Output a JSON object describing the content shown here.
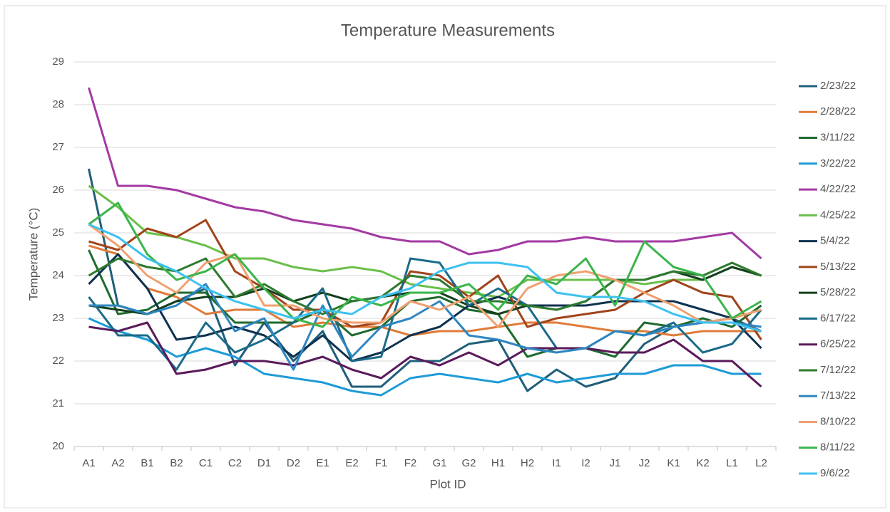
{
  "chart_data": {
    "type": "line",
    "title": "Temperature Measurements",
    "x_label": "Plot ID",
    "y_label": "Temperature (°C)",
    "categories": [
      "A1",
      "A2",
      "B1",
      "B2",
      "C1",
      "C2",
      "D1",
      "D2",
      "E1",
      "E2",
      "F1",
      "F2",
      "G1",
      "G2",
      "H1",
      "H2",
      "I1",
      "I2",
      "J1",
      "J2",
      "K1",
      "K2",
      "L1",
      "L2"
    ],
    "ylim": [
      20,
      29
    ],
    "yticks": [
      20,
      21,
      22,
      23,
      24,
      25,
      26,
      27,
      28,
      29
    ],
    "grid": true,
    "legend": "right",
    "series": [
      {
        "name": "2/23/22",
        "color": "#1f5f7a",
        "values": [
          26.5,
          23.3,
          23.1,
          23.4,
          23.7,
          21.9,
          22.9,
          22.0,
          22.7,
          21.4,
          21.4,
          22.0,
          22.0,
          22.4,
          22.5,
          21.3,
          21.8,
          21.4,
          21.6,
          22.4,
          22.8,
          22.9,
          23.0,
          22.7
        ]
      },
      {
        "name": "2/28/22",
        "color": "#e07b39",
        "values": [
          24.7,
          24.5,
          23.7,
          23.5,
          23.1,
          23.2,
          23.2,
          22.8,
          22.9,
          22.8,
          22.8,
          22.6,
          22.7,
          22.7,
          22.8,
          22.9,
          22.9,
          22.8,
          22.7,
          22.7,
          22.6,
          22.7,
          22.7,
          22.7
        ]
      },
      {
        "name": "3/11/22",
        "color": "#1e6b2e",
        "values": [
          24.6,
          23.1,
          23.2,
          23.6,
          23.6,
          22.9,
          22.9,
          22.9,
          23.2,
          22.6,
          22.8,
          23.4,
          23.5,
          23.2,
          23.1,
          22.1,
          22.3,
          22.3,
          22.1,
          22.9,
          22.8,
          23.0,
          22.8,
          23.3
        ]
      },
      {
        "name": "3/22/22",
        "color": "#1e9bd7",
        "values": [
          23.0,
          22.7,
          22.5,
          22.1,
          22.3,
          22.1,
          21.7,
          21.6,
          21.5,
          21.3,
          21.2,
          21.6,
          21.7,
          21.6,
          21.5,
          21.7,
          21.5,
          21.6,
          21.7,
          21.7,
          21.9,
          21.9,
          21.7,
          21.7
        ]
      },
      {
        "name": "4/22/22",
        "color": "#a33aa3",
        "values": [
          28.4,
          26.1,
          26.1,
          26.0,
          25.8,
          25.6,
          25.5,
          25.3,
          25.2,
          25.1,
          24.9,
          24.8,
          24.8,
          24.5,
          24.6,
          24.8,
          24.8,
          24.9,
          24.8,
          24.8,
          24.8,
          24.9,
          25.0,
          24.4
        ]
      },
      {
        "name": "4/25/22",
        "color": "#6abf4b",
        "values": [
          26.1,
          25.6,
          25.0,
          24.9,
          24.7,
          24.4,
          24.4,
          24.2,
          24.1,
          24.2,
          24.1,
          23.8,
          23.7,
          23.6,
          23.5,
          23.9,
          23.9,
          23.9,
          23.9,
          23.8,
          23.9,
          23.9,
          24.2,
          24.0
        ]
      },
      {
        "name": "5/4/22",
        "color": "#0e3250",
        "values": [
          23.8,
          24.5,
          23.7,
          22.5,
          22.6,
          22.8,
          22.6,
          22.1,
          22.6,
          22.0,
          22.2,
          22.6,
          22.8,
          23.3,
          23.5,
          23.3,
          23.3,
          23.3,
          23.4,
          23.4,
          23.4,
          23.2,
          23.0,
          22.3
        ]
      },
      {
        "name": "5/13/22",
        "color": "#a0441a",
        "values": [
          24.8,
          24.6,
          25.1,
          24.9,
          25.3,
          24.1,
          23.7,
          23.2,
          23.2,
          22.8,
          22.9,
          24.1,
          24.0,
          23.5,
          24.0,
          22.8,
          23.0,
          23.1,
          23.2,
          23.6,
          23.9,
          23.6,
          23.5,
          22.5
        ]
      },
      {
        "name": "5/28/22",
        "color": "#14401e",
        "values": [
          23.3,
          23.2,
          23.1,
          23.4,
          23.5,
          23.5,
          23.7,
          23.4,
          23.6,
          23.4,
          23.5,
          23.6,
          23.6,
          23.3,
          23.1,
          23.3,
          23.2,
          23.4,
          23.9,
          23.9,
          24.1,
          23.9,
          24.2,
          24.0
        ]
      },
      {
        "name": "6/17/22",
        "color": "#1a6b8a",
        "values": [
          23.5,
          22.6,
          22.6,
          21.8,
          22.9,
          22.2,
          22.5,
          22.9,
          23.7,
          22.0,
          22.1,
          24.4,
          24.3,
          23.3,
          23.7,
          23.3,
          22.3,
          22.3,
          22.7,
          22.6,
          22.9,
          22.2,
          22.4,
          23.2
        ]
      },
      {
        "name": "6/25/22",
        "color": "#5a1a5a",
        "values": [
          22.8,
          22.7,
          22.9,
          21.7,
          21.8,
          22.0,
          22.0,
          21.9,
          22.1,
          21.8,
          21.6,
          22.1,
          21.9,
          22.2,
          21.9,
          22.3,
          22.3,
          22.3,
          22.2,
          22.2,
          22.5,
          22.0,
          22.0,
          21.4
        ]
      },
      {
        "name": "7/12/22",
        "color": "#2e7a2e",
        "values": [
          24.0,
          24.4,
          24.2,
          24.1,
          24.4,
          23.5,
          23.8,
          23.4,
          23.1,
          23.4,
          23.5,
          24.0,
          23.9,
          23.4,
          23.4,
          23.3,
          23.2,
          23.4,
          23.9,
          23.9,
          24.1,
          24.0,
          24.3,
          24.0
        ]
      },
      {
        "name": "7/13/22",
        "color": "#2e86c1",
        "values": [
          23.3,
          23.3,
          23.1,
          23.3,
          23.8,
          22.7,
          23.0,
          21.8,
          23.3,
          22.1,
          22.8,
          23.0,
          23.4,
          22.6,
          22.5,
          22.3,
          22.2,
          22.3,
          22.7,
          22.6,
          22.8,
          22.9,
          22.9,
          22.8
        ]
      },
      {
        "name": "8/10/22",
        "color": "#f0a070",
        "values": [
          25.2,
          24.7,
          24.0,
          23.6,
          24.3,
          24.5,
          23.3,
          23.3,
          23.0,
          22.9,
          22.9,
          23.4,
          23.2,
          23.5,
          22.8,
          23.7,
          24.0,
          24.1,
          23.9,
          23.6,
          23.3,
          22.9,
          23.0,
          23.2
        ]
      },
      {
        "name": "8/11/22",
        "color": "#3ab54a",
        "values": [
          25.2,
          25.7,
          24.5,
          23.9,
          24.1,
          24.5,
          23.7,
          23.0,
          22.8,
          23.5,
          23.3,
          23.6,
          23.6,
          23.8,
          23.2,
          24.0,
          23.8,
          24.4,
          23.3,
          24.8,
          24.2,
          24.0,
          23.0,
          23.4
        ]
      },
      {
        "name": "9/6/22",
        "color": "#3ec1f0",
        "values": [
          25.2,
          24.9,
          24.4,
          24.1,
          23.7,
          23.4,
          23.2,
          23.0,
          23.2,
          23.1,
          23.5,
          23.7,
          24.1,
          24.3,
          24.3,
          24.2,
          23.6,
          23.5,
          23.5,
          23.4,
          23.1,
          22.9,
          22.9,
          22.7
        ]
      }
    ]
  }
}
